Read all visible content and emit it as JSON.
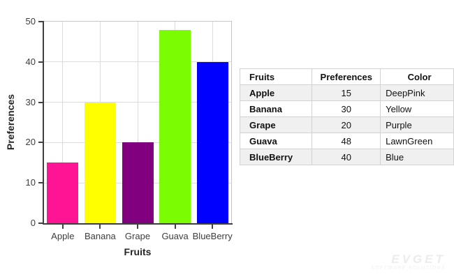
{
  "chart_data": {
    "type": "bar",
    "title": "",
    "xlabel": "Fruits",
    "ylabel": "Preferences",
    "categories": [
      "Apple",
      "Banana",
      "Grape",
      "Guava",
      "BlueBerry"
    ],
    "values": [
      15,
      30,
      20,
      48,
      40
    ],
    "bar_colors": [
      "#FF1493",
      "#FFFF00",
      "#800080",
      "#7CFC00",
      "#0000FF"
    ],
    "bar_color_names": [
      "DeepPink",
      "Yellow",
      "Purple",
      "LawnGreen",
      "Blue"
    ],
    "ylim": [
      0,
      50
    ],
    "ytick_step": 10,
    "yticks": [
      0,
      10,
      20,
      30,
      40,
      50
    ],
    "grid": "horizontal lines at y ticks, vertical lines at category centers",
    "legend_position": "none"
  },
  "table": {
    "headers": [
      "Fruits",
      "Preferences",
      "Color"
    ],
    "rows": [
      [
        "Apple",
        "15",
        "DeepPink"
      ],
      [
        "Banana",
        "30",
        "Yellow"
      ],
      [
        "Grape",
        "20",
        "Purple"
      ],
      [
        "Guava",
        "48",
        "LawnGreen"
      ],
      [
        "BlueBerry",
        "40",
        "Blue"
      ]
    ]
  },
  "watermark": {
    "brand": "EVGET",
    "tagline": "SOFTWARE SOLUTIONS"
  },
  "colors": {
    "axis": "#3f3f3f",
    "gridline": "#dcdcdc",
    "plot_border": "#c6c6c6",
    "table_shaded_row": "#f0f0f0",
    "background": "#ffffff"
  }
}
